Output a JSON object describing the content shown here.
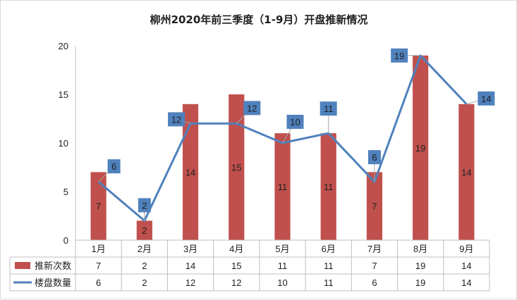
{
  "chart_data": {
    "type": "bar",
    "title": "柳州2020年前三季度（1-9月）开盘推新情况",
    "categories": [
      "1月",
      "2月",
      "3月",
      "4月",
      "5月",
      "6月",
      "7月",
      "8月",
      "9月"
    ],
    "ylim": [
      0,
      20
    ],
    "yticks": [
      "0",
      "5",
      "10",
      "15",
      "20"
    ],
    "grid": false,
    "data_table": true,
    "series": [
      {
        "name": "推新次数",
        "type": "bar",
        "color": "#c0504d",
        "values": [
          7,
          2,
          14,
          15,
          11,
          11,
          7,
          19,
          14
        ]
      },
      {
        "name": "楼盘数量",
        "type": "line",
        "color": "#4f81bd",
        "values": [
          6,
          2,
          12,
          12,
          10,
          11,
          6,
          19,
          14
        ]
      }
    ]
  }
}
